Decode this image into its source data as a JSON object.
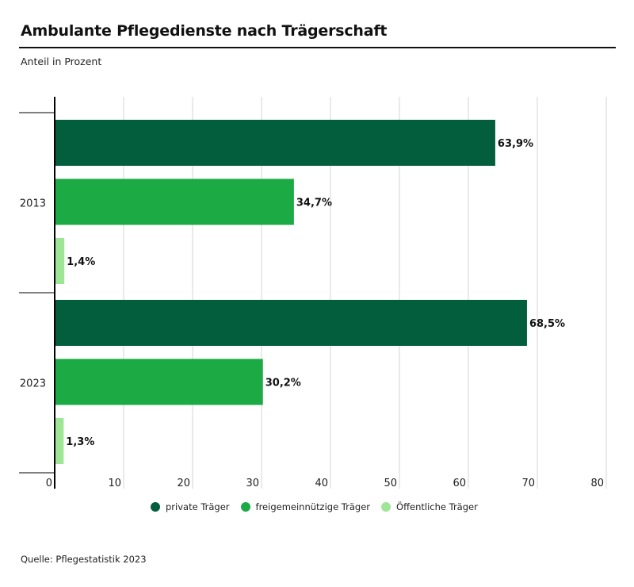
{
  "header": {
    "title": "Ambulante Pflegedienste nach Trägerschaft",
    "subtitle": "Anteil in Prozent"
  },
  "footer": {
    "source": "Quelle: Pflegestatistik 2023"
  },
  "chart_data": {
    "type": "bar",
    "orientation": "horizontal",
    "title": "Ambulante Pflegedienste nach Trägerschaft",
    "subtitle": "Anteil in Prozent",
    "xlabel": "",
    "ylabel": "",
    "categories": [
      "2013",
      "2023"
    ],
    "series": [
      {
        "name": "private Träger",
        "color": "#035e3e",
        "values": [
          63.9,
          68.5
        ],
        "labels": [
          "63,9%",
          "68,5%"
        ]
      },
      {
        "name": "freigemeinnützige Träger",
        "color": "#1caa45",
        "values": [
          34.7,
          30.2
        ],
        "labels": [
          "34,7%",
          "30,2%"
        ]
      },
      {
        "name": "Öffentliche Träger",
        "color": "#9ee596",
        "values": [
          1.4,
          1.3
        ],
        "labels": [
          "1,4%",
          "1,3%"
        ]
      }
    ],
    "xlim": [
      0,
      80
    ],
    "x_ticks": [
      0,
      10,
      20,
      30,
      40,
      50,
      60,
      70,
      80
    ],
    "x_tick_labels": [
      "0",
      "10",
      "20",
      "30",
      "40",
      "50",
      "60",
      "70",
      "80"
    ],
    "grid": true,
    "legend_position": "bottom-center",
    "gridline_color": "#d6d6d6",
    "axis_color": "#000000"
  }
}
